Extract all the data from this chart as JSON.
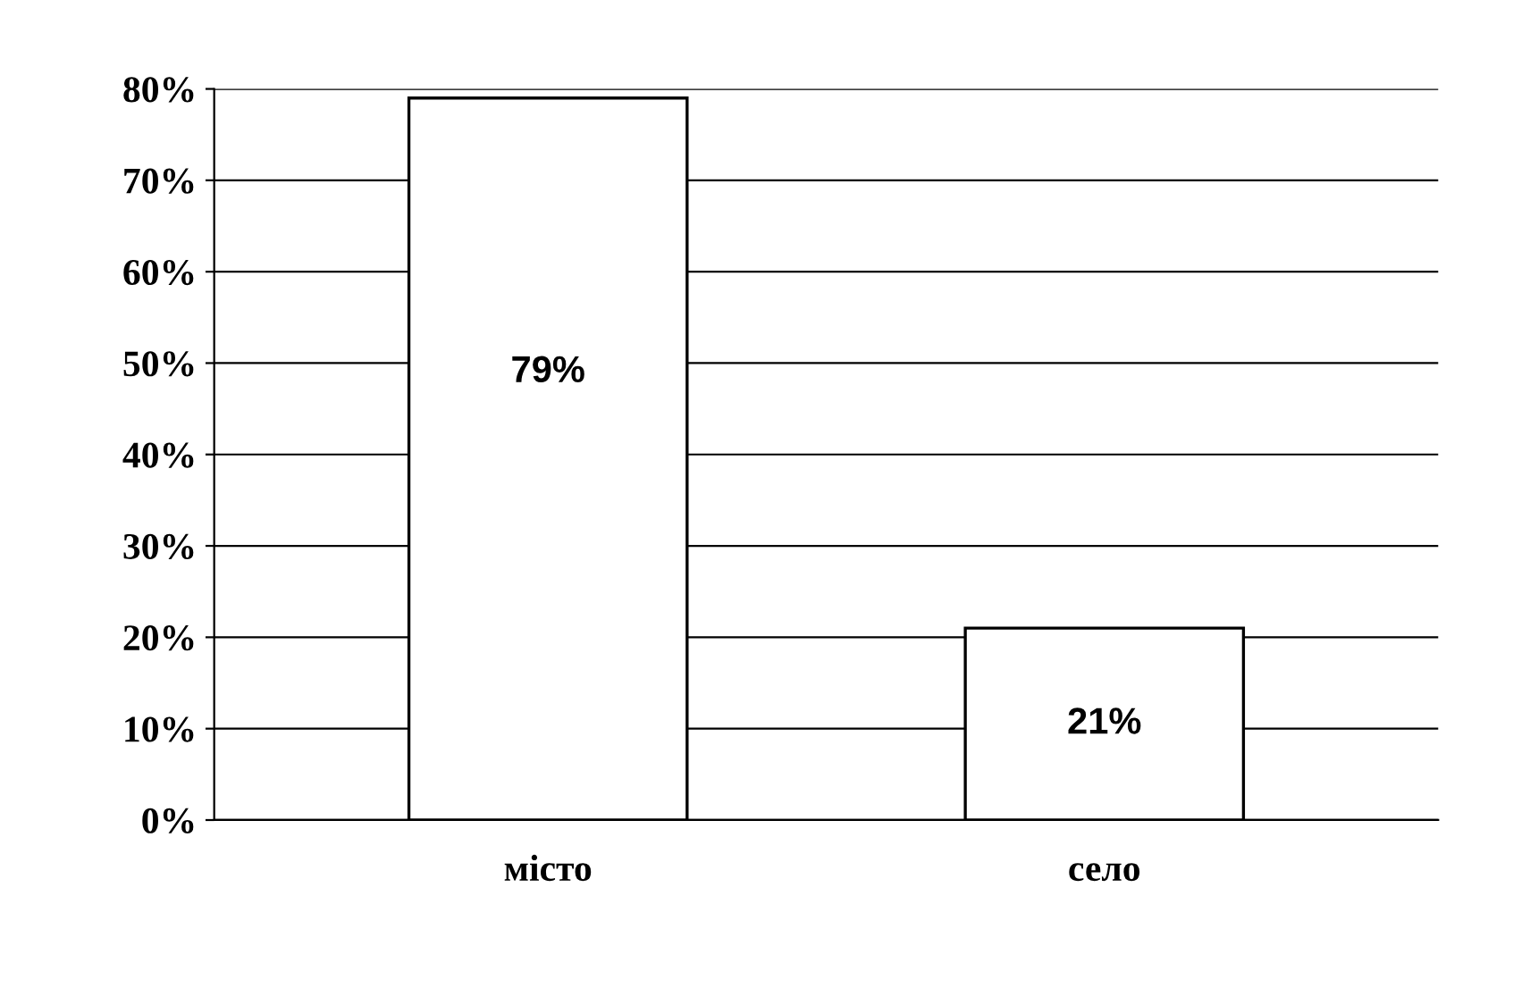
{
  "chart_data": {
    "type": "bar",
    "categories": [
      "місто",
      "село"
    ],
    "values": [
      79,
      21
    ],
    "colors": [
      "#ffffff",
      "#ffffff"
    ],
    "value_labels": [
      "79%",
      "21%"
    ],
    "ylim": [
      0,
      80
    ],
    "yticks": [
      {
        "value": 0,
        "label": "0%"
      },
      {
        "value": 10,
        "label": "10%"
      },
      {
        "value": 20,
        "label": "20%"
      },
      {
        "value": 30,
        "label": "30%"
      },
      {
        "value": 40,
        "label": "40%"
      },
      {
        "value": 50,
        "label": "50%"
      },
      {
        "value": 60,
        "label": "60%"
      },
      {
        "value": 70,
        "label": "70%"
      },
      {
        "value": 80,
        "label": "80%"
      }
    ],
    "grid": "y",
    "legend": false
  }
}
